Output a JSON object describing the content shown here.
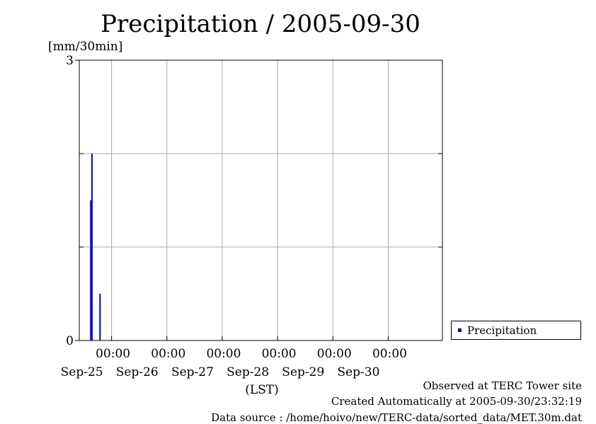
{
  "chart_data": {
    "type": "bar",
    "title": "Precipitation / 2005-09-30",
    "ylabel": "[mm/30min]",
    "xlabel": "(LST)",
    "ylim": [
      0,
      3
    ],
    "y_ticks": [
      0,
      3
    ],
    "y_grid": [
      0,
      1,
      2,
      3
    ],
    "xlim": [
      "2005-09-24T10:00",
      "2005-09-30T23:30"
    ],
    "x_ticks": [
      {
        "x": "2005-09-25T00:00",
        "time": "00:00",
        "date": "Sep-25"
      },
      {
        "x": "2005-09-26T00:00",
        "time": "00:00",
        "date": "Sep-26"
      },
      {
        "x": "2005-09-27T00:00",
        "time": "00:00",
        "date": "Sep-27"
      },
      {
        "x": "2005-09-28T00:00",
        "time": "00:00",
        "date": "Sep-28"
      },
      {
        "x": "2005-09-29T00:00",
        "time": "00:00",
        "date": "Sep-29"
      },
      {
        "x": "2005-09-30T00:00",
        "time": "00:00",
        "date": "Sep-30"
      }
    ],
    "grid": true,
    "legend_position": "right-bottom",
    "series": [
      {
        "name": "Precipitation",
        "color": "#0000cc",
        "points": [
          {
            "x": "2005-09-24T15:00",
            "y": 1.5
          },
          {
            "x": "2005-09-24T15:30",
            "y": 2.0
          },
          {
            "x": "2005-09-24T19:00",
            "y": 0.5
          }
        ]
      }
    ]
  },
  "footer": {
    "line1": "Observed at TERC Tower site",
    "line2": "Created Automatically at 2005-09-30/23:32:19",
    "line3": "Data source : /home/hoivo/new/TERC-data/sorted_data/MET.30m.dat"
  }
}
